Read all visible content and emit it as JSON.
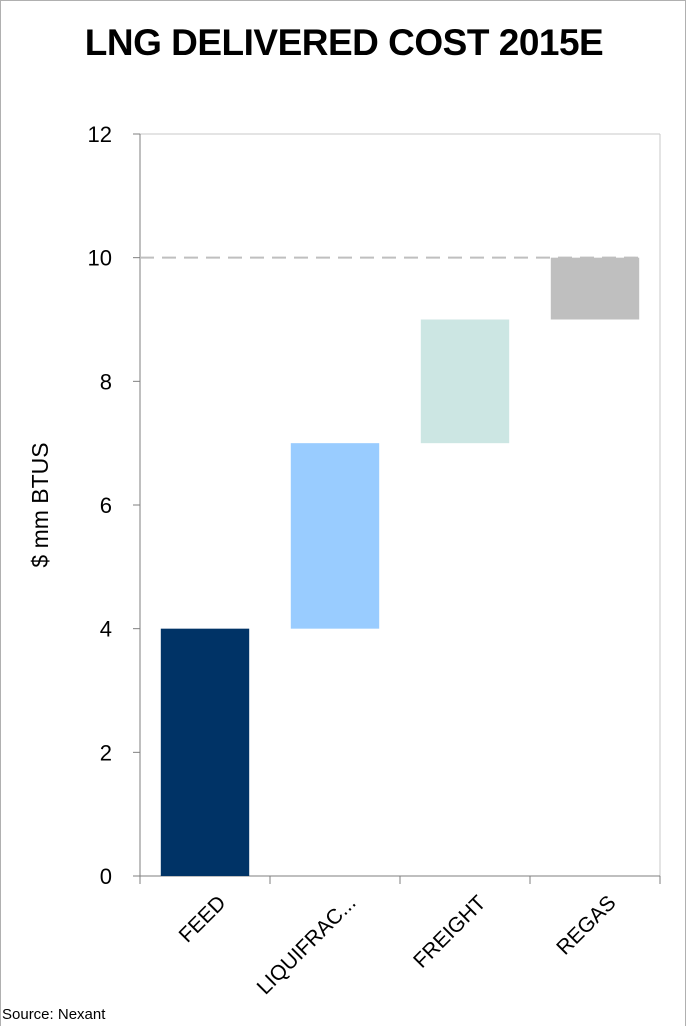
{
  "chart_data": {
    "type": "bar",
    "subtype": "waterfall",
    "title": "LNG DELIVERED COST 2015E",
    "ylabel": "$ mm BTUS",
    "xlabel": "",
    "categories": [
      "FEED",
      "LIQUIFRAC...",
      "FREIGHT",
      "REGAS"
    ],
    "bars": [
      {
        "category": "FEED",
        "start": 0,
        "end": 4,
        "color": "#003366"
      },
      {
        "category": "LIQUIFRAC...",
        "start": 4,
        "end": 7,
        "color": "#99ccff"
      },
      {
        "category": "FREIGHT",
        "start": 7,
        "end": 9,
        "color": "#cce6e3"
      },
      {
        "category": "REGAS",
        "start": 9,
        "end": 10,
        "color": "#bfbfbf"
      }
    ],
    "ylim": [
      0,
      12
    ],
    "yticks": [
      "0",
      "2",
      "4",
      "6",
      "8",
      "10",
      "12"
    ],
    "reference_line": {
      "y": 10,
      "style": "dashed",
      "color": "#bfbfbf"
    },
    "grid": false,
    "legend": "none"
  },
  "source": "Source: Nexant"
}
